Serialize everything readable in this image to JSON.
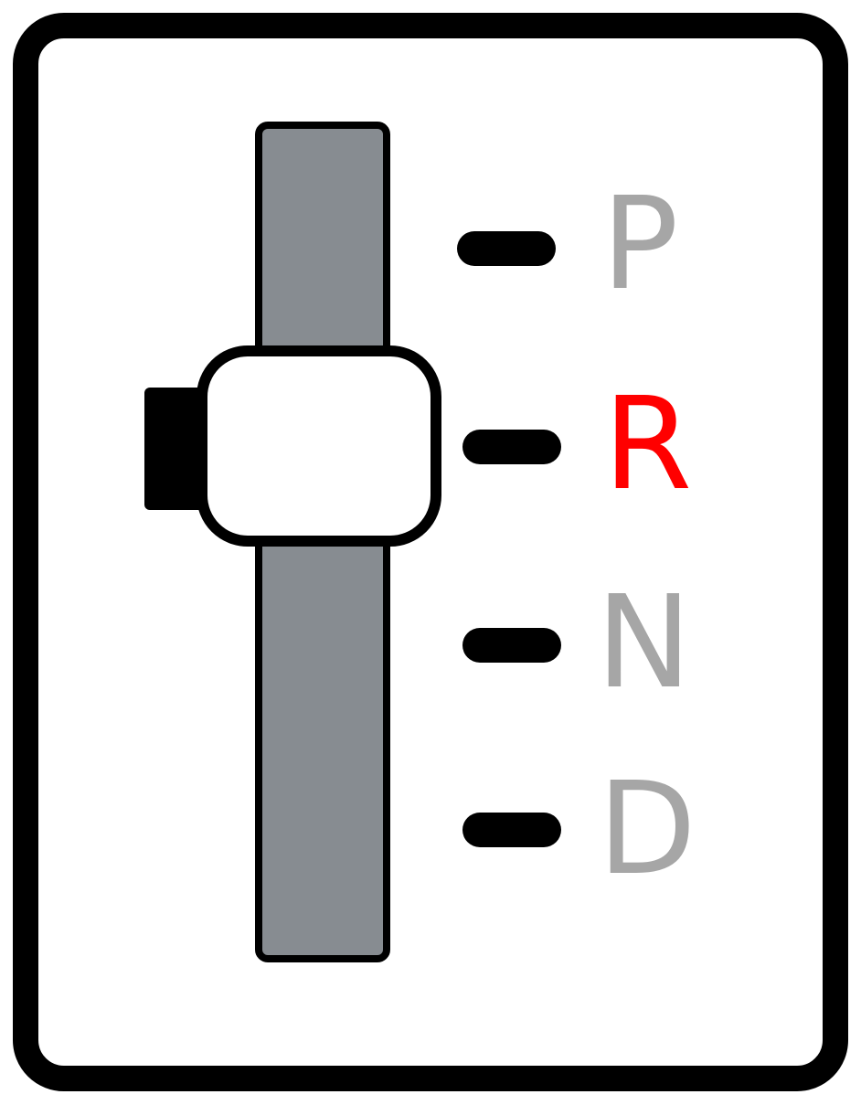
{
  "gear_selector": {
    "gears": [
      {
        "label": "P",
        "color": "#a6a6a6",
        "active": false
      },
      {
        "label": "R",
        "color": "#ff0000",
        "active": true
      },
      {
        "label": "N",
        "color": "#a6a6a6",
        "active": false
      },
      {
        "label": "D",
        "color": "#a6a6a6",
        "active": false
      }
    ],
    "selected_gear": "R",
    "colors": {
      "frame": "#000000",
      "track": "#878c91",
      "handle": "#ffffff",
      "active_letter": "#ff0000",
      "inactive_letter": "#a6a6a6"
    }
  }
}
